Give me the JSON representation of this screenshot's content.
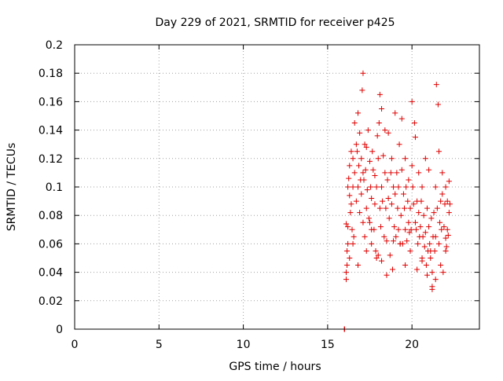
{
  "chart_data": {
    "type": "scatter",
    "title": "Day 229 of 2021, SRMTID for receiver p425",
    "xlabel": "GPS time / hours",
    "ylabel": "SRMTID / TECUs",
    "xlim": [
      0,
      24
    ],
    "ylim": [
      0,
      0.2
    ],
    "xticks": [
      0,
      5,
      10,
      15,
      20
    ],
    "xtick_labels": [
      "0",
      "5",
      "10",
      "15",
      "20"
    ],
    "yticks": [
      0,
      0.02,
      0.04,
      0.06,
      0.08,
      0.1,
      0.12,
      0.14,
      0.16,
      0.18,
      0.2
    ],
    "ytick_labels": [
      "0",
      "0.02",
      "0.04",
      "0.06",
      "0.08",
      "0.1",
      "0.12",
      "0.14",
      "0.16",
      "0.18",
      "0.2"
    ],
    "grid": true,
    "marker": "plus",
    "marker_color": "#e00000",
    "series": [
      {
        "name": "SRMTID",
        "x": [
          16.0,
          16.0,
          16.0,
          16.0,
          16.1,
          16.1,
          16.1,
          16.15,
          16.15,
          16.2,
          16.2,
          16.2,
          16.25,
          16.3,
          16.3,
          16.35,
          16.4,
          16.4,
          16.45,
          16.5,
          16.5,
          16.55,
          16.6,
          16.6,
          16.7,
          16.7,
          16.75,
          16.8,
          16.8,
          16.85,
          16.9,
          16.9,
          16.95,
          17.0,
          17.0,
          17.05,
          17.1,
          17.1,
          17.15,
          17.2,
          17.2,
          17.25,
          17.3,
          17.3,
          17.35,
          17.4,
          17.45,
          17.5,
          17.5,
          17.55,
          17.6,
          17.6,
          17.65,
          17.7,
          17.75,
          17.8,
          17.8,
          17.85,
          17.9,
          17.95,
          18.0,
          18.0,
          18.05,
          18.1,
          18.1,
          18.15,
          18.2,
          18.2,
          18.25,
          18.3,
          18.35,
          18.4,
          18.4,
          18.45,
          18.5,
          18.55,
          18.6,
          18.6,
          18.65,
          18.7,
          18.75,
          18.8,
          18.8,
          18.85,
          18.9,
          18.95,
          19.0,
          19.0,
          19.05,
          19.1,
          19.15,
          19.2,
          19.2,
          19.25,
          19.3,
          19.35,
          19.4,
          19.4,
          19.45,
          19.5,
          19.55,
          19.6,
          19.6,
          19.65,
          19.7,
          19.75,
          19.8,
          19.8,
          19.85,
          19.9,
          19.95,
          20.0,
          20.0,
          20.05,
          20.1,
          20.15,
          20.2,
          20.2,
          20.25,
          20.3,
          20.35,
          20.4,
          20.4,
          20.45,
          20.5,
          20.55,
          20.6,
          20.6,
          20.65,
          20.7,
          20.75,
          20.8,
          20.8,
          20.85,
          20.9,
          20.95,
          21.0,
          21.0,
          21.05,
          21.1,
          21.15,
          21.2,
          21.2,
          21.25,
          21.3,
          21.35,
          21.4,
          21.4,
          21.45,
          21.5,
          21.55,
          21.6,
          21.6,
          21.65,
          21.7,
          21.75,
          21.8,
          21.8,
          21.85,
          21.9,
          21.95,
          22.0,
          22.0,
          22.05,
          22.1,
          22.1,
          22.15,
          22.2,
          22.2,
          22.25,
          16.3,
          16.5,
          16.8,
          17.1,
          17.3,
          17.6,
          17.9,
          18.2,
          18.5,
          18.9,
          19.3,
          19.6,
          19.9,
          20.3,
          20.6,
          20.9,
          21.1,
          21.2,
          21.4,
          21.7,
          22.0
        ],
        "y": [
          0.0,
          0.0,
          0.0,
          0.0,
          0.035,
          0.04,
          0.074,
          0.045,
          0.055,
          0.06,
          0.072,
          0.1,
          0.106,
          0.094,
          0.115,
          0.082,
          0.088,
          0.125,
          0.07,
          0.1,
          0.12,
          0.065,
          0.11,
          0.145,
          0.09,
          0.13,
          0.125,
          0.1,
          0.152,
          0.115,
          0.082,
          0.138,
          0.105,
          0.095,
          0.12,
          0.168,
          0.11,
          0.18,
          0.105,
          0.065,
          0.13,
          0.112,
          0.055,
          0.128,
          0.098,
          0.14,
          0.078,
          0.118,
          0.075,
          0.1,
          0.06,
          0.092,
          0.125,
          0.112,
          0.07,
          0.088,
          0.108,
          0.055,
          0.1,
          0.136,
          0.052,
          0.12,
          0.145,
          0.165,
          0.085,
          0.072,
          0.1,
          0.155,
          0.09,
          0.122,
          0.065,
          0.11,
          0.14,
          0.085,
          0.062,
          0.105,
          0.092,
          0.138,
          0.078,
          0.052,
          0.11,
          0.12,
          0.088,
          0.042,
          0.1,
          0.072,
          0.152,
          0.095,
          0.065,
          0.11,
          0.085,
          0.07,
          0.1,
          0.13,
          0.06,
          0.08,
          0.112,
          0.148,
          0.06,
          0.095,
          0.085,
          0.07,
          0.12,
          0.1,
          0.062,
          0.09,
          0.075,
          0.105,
          0.068,
          0.085,
          0.07,
          0.16,
          0.115,
          0.1,
          0.088,
          0.145,
          0.075,
          0.135,
          0.07,
          0.09,
          0.06,
          0.082,
          0.11,
          0.065,
          0.072,
          0.09,
          0.05,
          0.1,
          0.065,
          0.08,
          0.058,
          0.068,
          0.12,
          0.045,
          0.085,
          0.055,
          0.072,
          0.112,
          0.06,
          0.05,
          0.078,
          0.04,
          0.03,
          0.065,
          0.082,
          0.055,
          0.065,
          0.1,
          0.172,
          0.085,
          0.158,
          0.06,
          0.125,
          0.075,
          0.09,
          0.07,
          0.095,
          0.11,
          0.04,
          0.072,
          0.088,
          0.064,
          0.1,
          0.058,
          0.07,
          0.09,
          0.066,
          0.082,
          0.104,
          0.088,
          0.05,
          0.06,
          0.045,
          0.075,
          0.085,
          0.07,
          0.05,
          0.048,
          0.038,
          0.062,
          0.06,
          0.045,
          0.055,
          0.042,
          0.048,
          0.038,
          0.055,
          0.028,
          0.035,
          0.045,
          0.055
        ]
      }
    ]
  }
}
